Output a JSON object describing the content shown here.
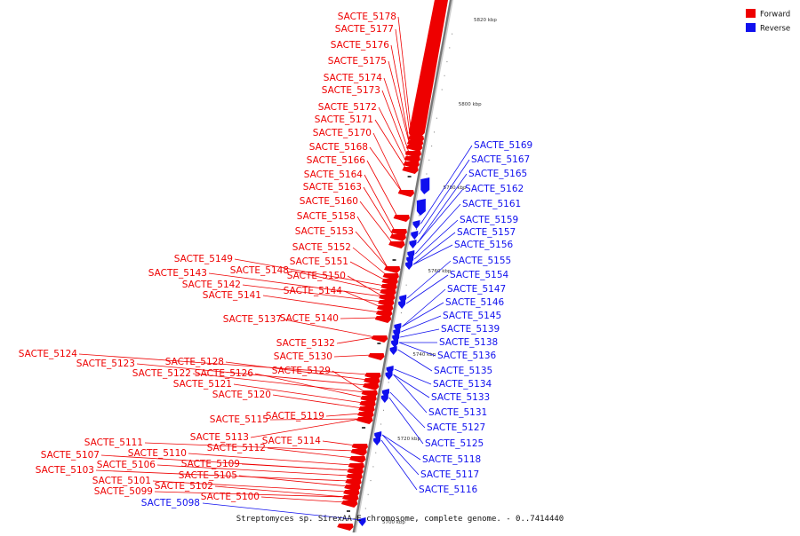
{
  "caption": "Streptomyces sp. SirexAA-E chromosome, complete genome. - 0..7414440",
  "legend": [
    {
      "label": "Forward",
      "color": "#ee0000"
    },
    {
      "label": "Reverse",
      "color": "#1010ee"
    }
  ],
  "colors": {
    "forward": "#ee0000",
    "reverse": "#1010ee",
    "backbone": "#777777"
  },
  "ticks": [
    "5820 kbp",
    "5800 kbp",
    "5780 kbp",
    "5760 kbp",
    "5740 kbp",
    "5720 kbp",
    "5700 kbp"
  ],
  "forward_labels": [
    "SACTE_5178",
    "SACTE_5177",
    "SACTE_5176",
    "SACTE_5175",
    "SACTE_5174",
    "SACTE_5173",
    "SACTE_5172",
    "SACTE_5171",
    "SACTE_5170",
    "SACTE_5168",
    "SACTE_5166",
    "SACTE_5164",
    "SACTE_5163",
    "SACTE_5160",
    "SACTE_5158",
    "SACTE_5153",
    "SACTE_5152",
    "SACTE_5151",
    "SACTE_5149",
    "SACTE_5148",
    "SACTE_5150",
    "SACTE_5143",
    "SACTE_5142",
    "SACTE_5144",
    "SACTE_5141",
    "SACTE_5140",
    "SACTE_5137",
    "SACTE_5132",
    "SACTE_5130",
    "SACTE_5124",
    "SACTE_5128",
    "SACTE_5123",
    "SACTE_5129",
    "SACTE_5122",
    "SACTE_5126",
    "SACTE_5121",
    "SACTE_5120",
    "SACTE_5119",
    "SACTE_5115",
    "SACTE_5113",
    "SACTE_5114",
    "SACTE_5111",
    "SACTE_5112",
    "SACTE_5110",
    "SACTE_5107",
    "SACTE_5109",
    "SACTE_5106",
    "SACTE_5103",
    "SACTE_5105",
    "SACTE_5101",
    "SACTE_5102",
    "SACTE_5099",
    "SACTE_5100"
  ],
  "reverse_labels": [
    "SACTE_5169",
    "SACTE_5167",
    "SACTE_5165",
    "SACTE_5162",
    "SACTE_5161",
    "SACTE_5159",
    "SACTE_5157",
    "SACTE_5156",
    "SACTE_5155",
    "SACTE_5154",
    "SACTE_5147",
    "SACTE_5146",
    "SACTE_5145",
    "SACTE_5139",
    "SACTE_5138",
    "SACTE_5136",
    "SACTE_5135",
    "SACTE_5134",
    "SACTE_5133",
    "SACTE_5131",
    "SACTE_5127",
    "SACTE_5125",
    "SACTE_5118",
    "SACTE_5117",
    "SACTE_5116",
    "SACTE_5098"
  ]
}
